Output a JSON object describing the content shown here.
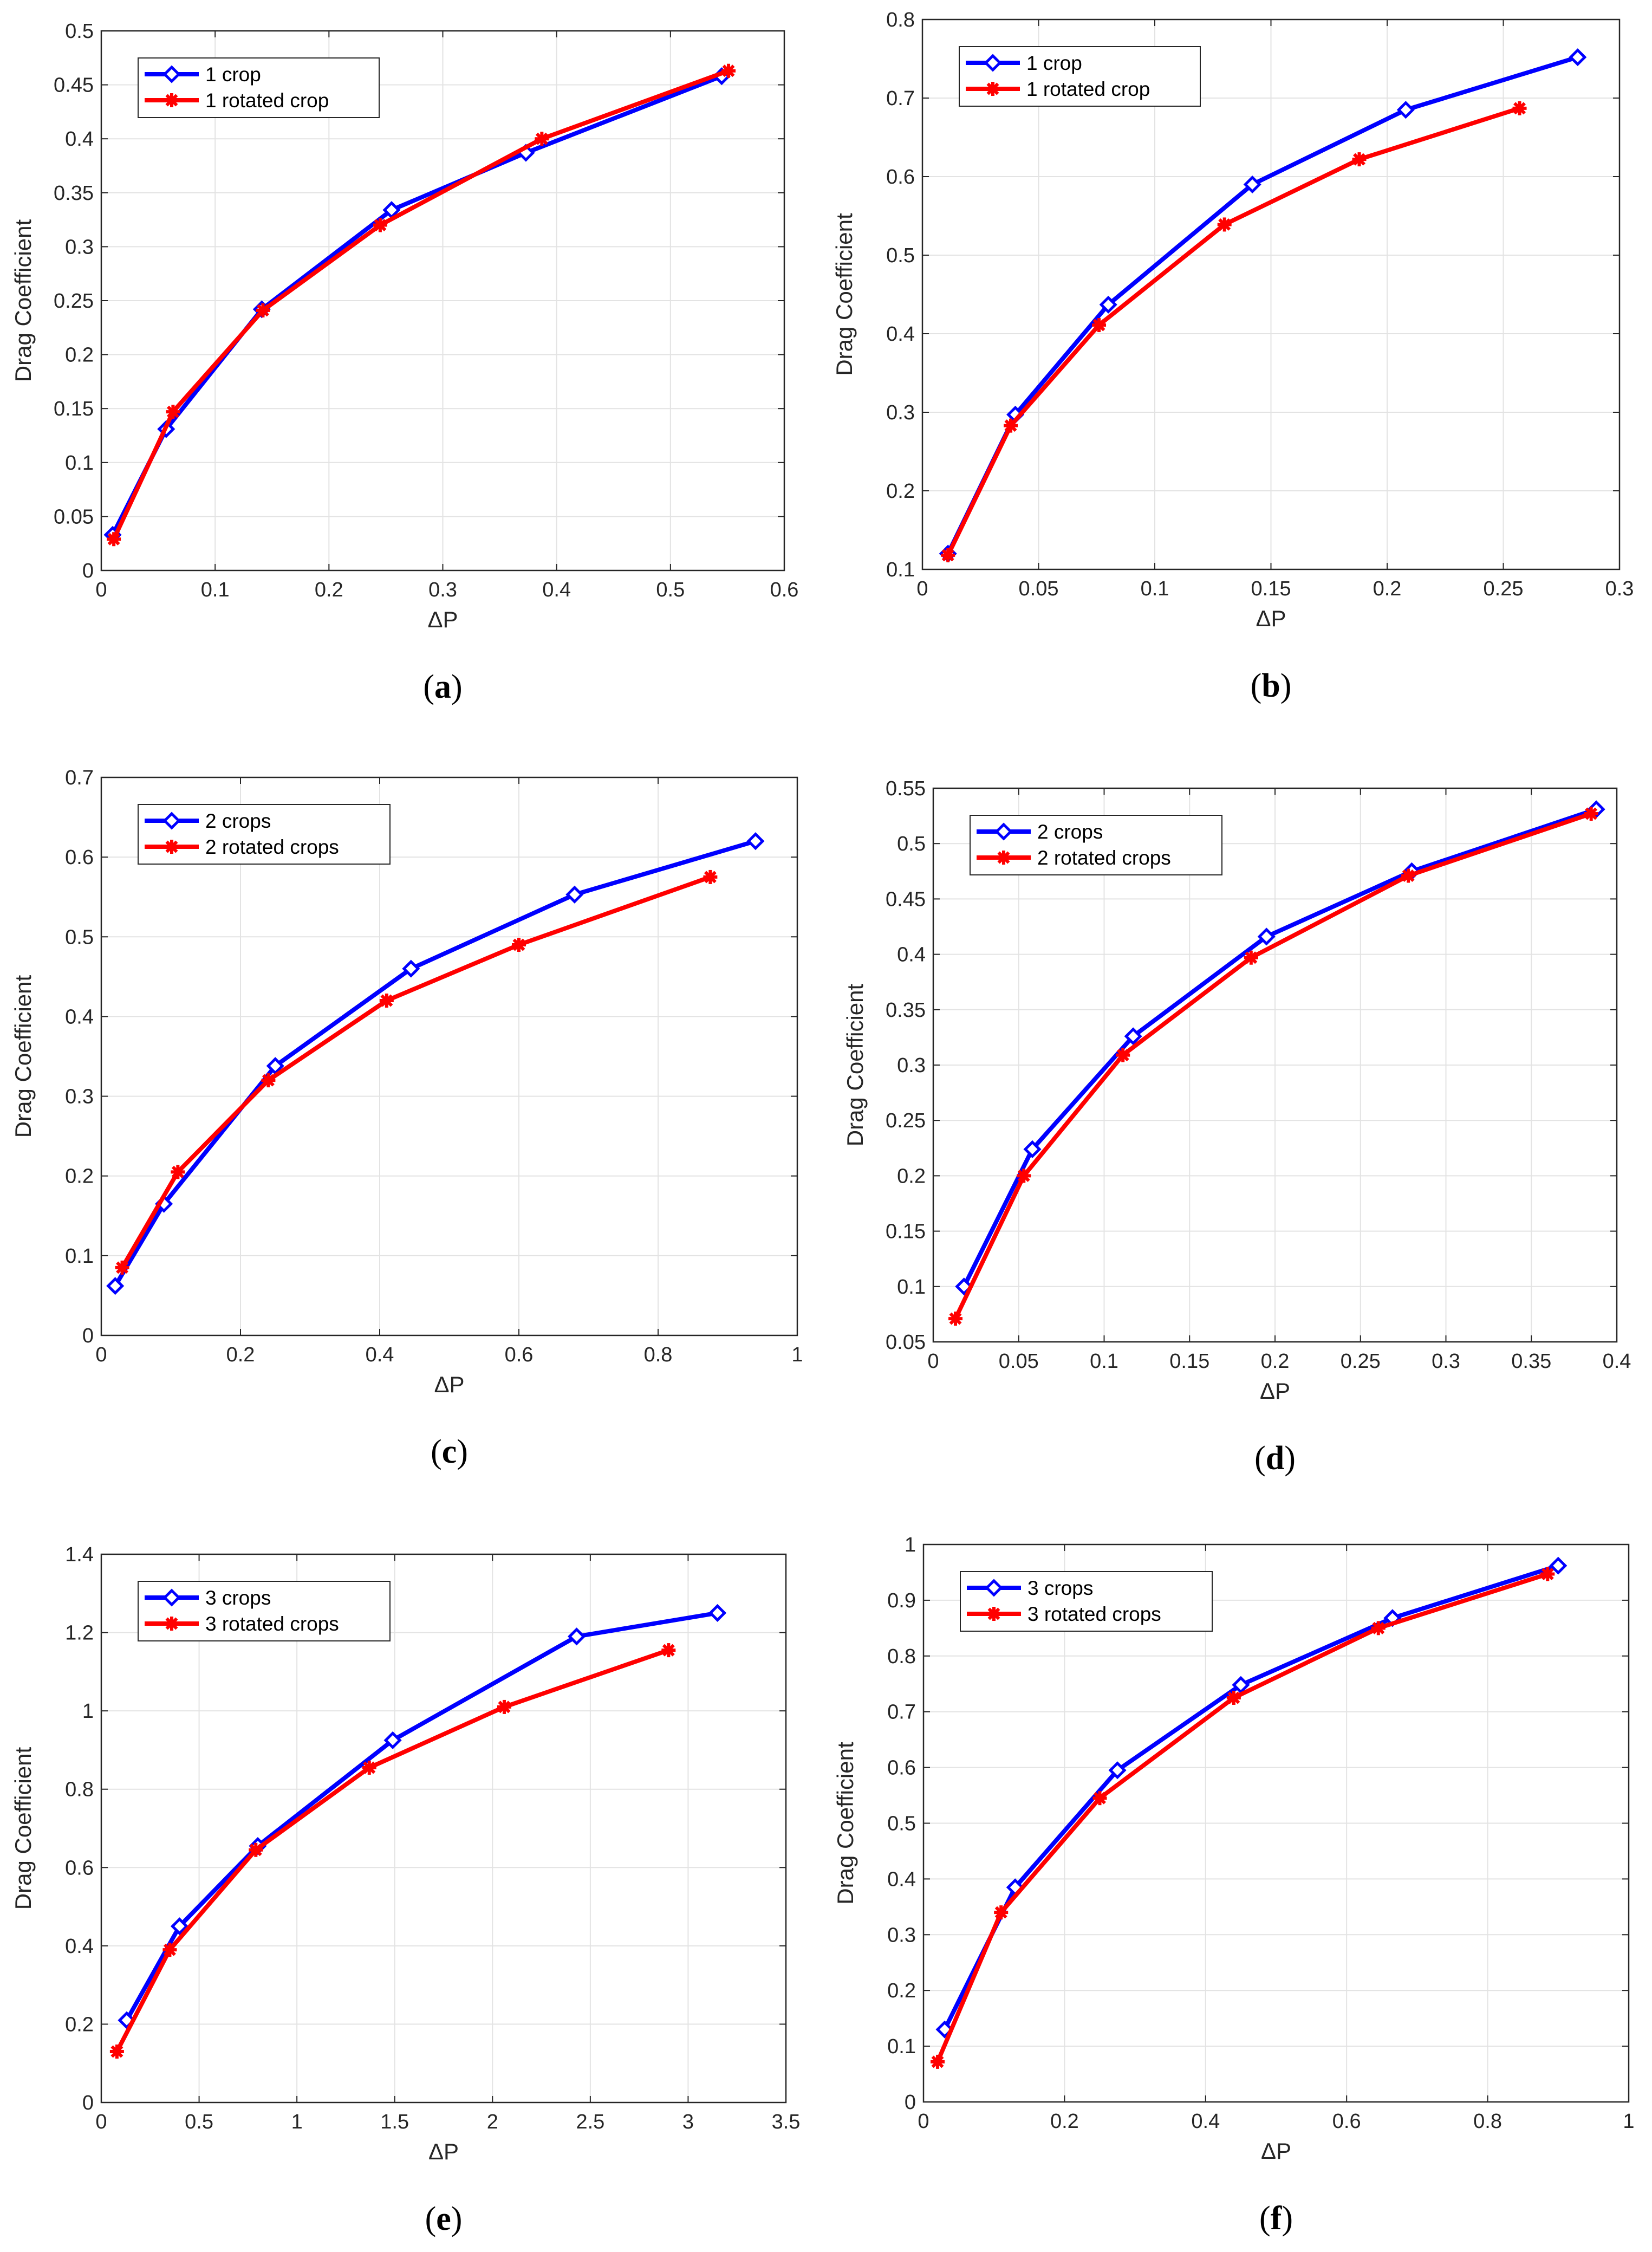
{
  "colors": {
    "series_1": "#0000ff",
    "series_2": "#ff0000"
  },
  "chart_data": [
    {
      "type": "line",
      "caption": "a",
      "xlabel": "ΔP",
      "ylabel": "Drag Coefficient",
      "xlim": [
        0,
        0.6
      ],
      "ylim": [
        0,
        0.5
      ],
      "xticks": [
        "0",
        "0.1",
        "0.2",
        "0.3",
        "0.4",
        "0.5",
        "0.6"
      ],
      "yticks": [
        "0",
        "0.05",
        "0.1",
        "0.15",
        "0.2",
        "0.25",
        "0.3",
        "0.35",
        "0.4",
        "0.45",
        "0.5"
      ],
      "grid": true,
      "legend_position": "top-left",
      "series": [
        {
          "name": "1 crop",
          "marker": "diamond",
          "x": [
            0.01,
            0.057,
            0.141,
            0.255,
            0.373,
            0.545
          ],
          "y": [
            0.033,
            0.131,
            0.242,
            0.334,
            0.387,
            0.458
          ]
        },
        {
          "name": "1 rotated crop",
          "marker": "star",
          "x": [
            0.011,
            0.063,
            0.142,
            0.245,
            0.387,
            0.551
          ],
          "y": [
            0.029,
            0.147,
            0.241,
            0.32,
            0.4,
            0.463
          ]
        }
      ]
    },
    {
      "type": "line",
      "caption": "b",
      "xlabel": "ΔP",
      "ylabel": "Drag Coefficient",
      "xlim": [
        0,
        0.3
      ],
      "ylim": [
        0.1,
        0.8
      ],
      "xticks": [
        "0",
        "0.05",
        "0.1",
        "0.15",
        "0.2",
        "0.25",
        "0.3"
      ],
      "yticks": [
        "0.1",
        "0.2",
        "0.3",
        "0.4",
        "0.5",
        "0.6",
        "0.7",
        "0.8"
      ],
      "grid": true,
      "legend_position": "top-left",
      "series": [
        {
          "name": "1 crop",
          "marker": "diamond",
          "x": [
            0.011,
            0.04,
            0.08,
            0.142,
            0.208,
            0.282
          ],
          "y": [
            0.12,
            0.297,
            0.437,
            0.59,
            0.685,
            0.752
          ]
        },
        {
          "name": "1 rotated crop",
          "marker": "star",
          "x": [
            0.011,
            0.038,
            0.076,
            0.13,
            0.188,
            0.257
          ],
          "y": [
            0.118,
            0.283,
            0.411,
            0.539,
            0.622,
            0.687
          ]
        }
      ]
    },
    {
      "type": "line",
      "caption": "c",
      "xlabel": "ΔP",
      "ylabel": "Drag Coefficient",
      "xlim": [
        0,
        1
      ],
      "ylim": [
        0,
        0.7
      ],
      "xticks": [
        "0",
        "0.2",
        "0.4",
        "0.6",
        "0.8",
        "1"
      ],
      "yticks": [
        "0",
        "0.1",
        "0.2",
        "0.3",
        "0.4",
        "0.5",
        "0.6",
        "0.7"
      ],
      "grid": true,
      "legend_position": "top-left",
      "series": [
        {
          "name": "2 crops",
          "marker": "diamond",
          "x": [
            0.02,
            0.09,
            0.25,
            0.445,
            0.68,
            0.94
          ],
          "y": [
            0.062,
            0.165,
            0.338,
            0.46,
            0.553,
            0.62
          ]
        },
        {
          "name": "2 rotated crops",
          "marker": "star",
          "x": [
            0.03,
            0.11,
            0.24,
            0.41,
            0.6,
            0.875
          ],
          "y": [
            0.085,
            0.205,
            0.32,
            0.42,
            0.49,
            0.575
          ]
        }
      ]
    },
    {
      "type": "line",
      "caption": "d",
      "xlabel": "ΔP",
      "ylabel": "Drag Coefficient",
      "xlim": [
        0,
        0.4
      ],
      "ylim": [
        0.05,
        0.55
      ],
      "xticks": [
        "0",
        "0.05",
        "0.1",
        "0.15",
        "0.2",
        "0.25",
        "0.3",
        "0.35",
        "0.4"
      ],
      "yticks": [
        "0.05",
        "0.1",
        "0.15",
        "0.2",
        "0.25",
        "0.3",
        "0.35",
        "0.4",
        "0.45",
        "0.5",
        "0.55"
      ],
      "grid": true,
      "legend_position": "top-left",
      "series": [
        {
          "name": "2 crops",
          "marker": "diamond",
          "x": [
            0.018,
            0.058,
            0.117,
            0.195,
            0.28,
            0.388
          ],
          "y": [
            0.1,
            0.224,
            0.326,
            0.416,
            0.475,
            0.531
          ]
        },
        {
          "name": "2 rotated crops",
          "marker": "star",
          "x": [
            0.013,
            0.053,
            0.111,
            0.186,
            0.278,
            0.385
          ],
          "y": [
            0.071,
            0.2,
            0.309,
            0.397,
            0.471,
            0.527
          ]
        }
      ]
    },
    {
      "type": "line",
      "caption": "e",
      "xlabel": "ΔP",
      "ylabel": "Drag Coefficient",
      "xlim": [
        0,
        3.5
      ],
      "ylim": [
        0,
        1.4
      ],
      "xticks": [
        "0",
        "0.5",
        "1",
        "1.5",
        "2",
        "2.5",
        "3",
        "3.5"
      ],
      "yticks": [
        "0",
        "0.2",
        "0.4",
        "0.6",
        "0.8",
        "1",
        "1.2",
        "1.4"
      ],
      "grid": true,
      "legend_position": "top-left",
      "series": [
        {
          "name": "3 crops",
          "marker": "diamond",
          "x": [
            0.13,
            0.4,
            0.8,
            1.49,
            2.43,
            3.15
          ],
          "y": [
            0.21,
            0.45,
            0.655,
            0.925,
            1.19,
            1.25
          ]
        },
        {
          "name": "3 rotated crops",
          "marker": "star",
          "x": [
            0.08,
            0.35,
            0.79,
            1.37,
            2.06,
            2.9
          ],
          "y": [
            0.13,
            0.39,
            0.645,
            0.855,
            1.01,
            1.155
          ]
        }
      ]
    },
    {
      "type": "line",
      "caption": "f",
      "xlabel": "ΔP",
      "ylabel": "Drag Coefficient",
      "xlim": [
        0,
        1
      ],
      "ylim": [
        0,
        1
      ],
      "xticks": [
        "0",
        "0.2",
        "0.4",
        "0.6",
        "0.8",
        "1"
      ],
      "yticks": [
        "0",
        "0.1",
        "0.2",
        "0.3",
        "0.4",
        "0.5",
        "0.6",
        "0.7",
        "0.8",
        "0.9",
        "1"
      ],
      "grid": true,
      "legend_position": "top-left",
      "series": [
        {
          "name": "3 crops",
          "marker": "diamond",
          "x": [
            0.03,
            0.13,
            0.275,
            0.45,
            0.665,
            0.9
          ],
          "y": [
            0.13,
            0.385,
            0.595,
            0.748,
            0.868,
            0.962
          ]
        },
        {
          "name": "3 rotated crops",
          "marker": "star",
          "x": [
            0.02,
            0.11,
            0.25,
            0.44,
            0.645,
            0.885
          ],
          "y": [
            0.072,
            0.34,
            0.545,
            0.725,
            0.85,
            0.947
          ]
        }
      ]
    }
  ]
}
